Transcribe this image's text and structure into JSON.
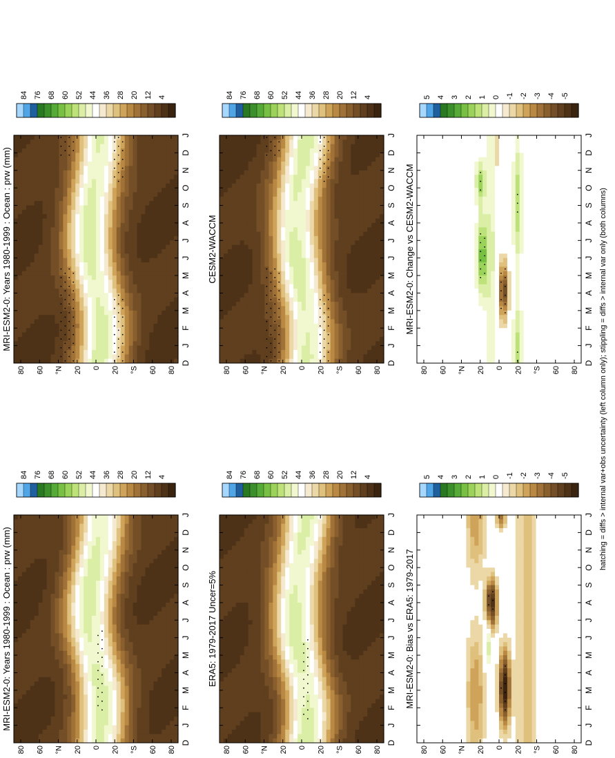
{
  "footnote": "hatching = diffs > internal var+obs uncertainty (left column only); stippling = diffs > internal var only (both columns)",
  "colors": {
    "precip_scale": [
      "#3a2410",
      "#4e3218",
      "#5f3f1e",
      "#734e26",
      "#8a5f2e",
      "#a07237",
      "#b98944",
      "#cfa45a",
      "#dfc07c",
      "#ecd8a6",
      "#f5ead0",
      "#ffffff",
      "#f1f8cf",
      "#dbeea6",
      "#bde27a",
      "#9bd35a",
      "#78c043",
      "#56aa37",
      "#3b902c",
      "#297822",
      "#1f5f9e",
      "#4fa5e6",
      "#a6d7ff"
    ]
  },
  "chart_data": [
    {
      "type": "heatmap",
      "id": "model_clim",
      "title": "MRI-ESM2-0: Years 1980-1999 : Ocean : prw (mm)",
      "x": [
        "D",
        "J",
        "F",
        "M",
        "A",
        "M",
        "J",
        "J",
        "A",
        "S",
        "O",
        "N",
        "D",
        "J"
      ],
      "y_ticks": [
        "80",
        "60",
        "40",
        "20",
        "0",
        "20",
        "40",
        "60",
        "80"
      ],
      "y_labels": [
        "80",
        "60",
        "°N",
        "20",
        "0",
        "20",
        "°S",
        "60",
        "80"
      ],
      "colorbar": [
        "84",
        "76",
        "68",
        "60",
        "52",
        "44",
        "36",
        "28",
        "20",
        "12",
        "4"
      ]
    },
    {
      "type": "heatmap",
      "id": "model_clim_2",
      "title": "MRI-ESM2-0: Years 1980-1999 : Ocean : prw (mm)",
      "x": [
        "D",
        "J",
        "F",
        "M",
        "A",
        "M",
        "J",
        "J",
        "A",
        "S",
        "O",
        "N",
        "D",
        "J"
      ],
      "y_labels": [
        "80",
        "60",
        "°N",
        "20",
        "0",
        "20",
        "°S",
        "60",
        "80"
      ],
      "colorbar": [
        "84",
        "76",
        "68",
        "60",
        "52",
        "44",
        "36",
        "28",
        "20",
        "12",
        "4"
      ]
    },
    {
      "type": "heatmap",
      "id": "obs_clim",
      "title": "ERA5: 1979-2017 Uncer=5%",
      "x": [
        "D",
        "J",
        "F",
        "M",
        "A",
        "M",
        "J",
        "J",
        "A",
        "S",
        "O",
        "N",
        "D",
        "J"
      ],
      "y_labels": [
        "80",
        "60",
        "°N",
        "20",
        "0",
        "20",
        "°S",
        "60",
        "80"
      ],
      "colorbar": [
        "84",
        "76",
        "68",
        "60",
        "52",
        "44",
        "36",
        "28",
        "20",
        "12",
        "4"
      ]
    },
    {
      "type": "heatmap",
      "id": "ref_model_clim",
      "title": "CESM2-WACCM",
      "x": [
        "D",
        "J",
        "F",
        "M",
        "A",
        "M",
        "J",
        "J",
        "A",
        "S",
        "O",
        "N",
        "D",
        "J"
      ],
      "y_labels": [
        "80",
        "60",
        "°N",
        "20",
        "0",
        "20",
        "°S",
        "60",
        "80"
      ],
      "colorbar": [
        "84",
        "76",
        "68",
        "60",
        "52",
        "44",
        "36",
        "28",
        "20",
        "12",
        "4"
      ]
    },
    {
      "type": "heatmap",
      "id": "bias",
      "title": "MRI-ESM2-0: Bias vs ERA5: 1979-2017",
      "x": [
        "D",
        "J",
        "F",
        "M",
        "A",
        "M",
        "J",
        "J",
        "A",
        "S",
        "O",
        "N",
        "D",
        "J"
      ],
      "y_labels": [
        "80",
        "60",
        "°N",
        "20",
        "0",
        "20",
        "°S",
        "60",
        "80"
      ],
      "colorbar": [
        "5",
        "4",
        "3",
        "2",
        "1",
        "0",
        "-1",
        "-2",
        "-3",
        "-4",
        "-5"
      ]
    },
    {
      "type": "heatmap",
      "id": "change",
      "title": "MRI-ESM2-0: Change vs CESM2-WACCM",
      "x": [
        "D",
        "J",
        "F",
        "M",
        "A",
        "M",
        "J",
        "J",
        "A",
        "S",
        "O",
        "N",
        "D",
        "J"
      ],
      "y_labels": [
        "80",
        "60",
        "°N",
        "20",
        "0",
        "20",
        "°S",
        "60",
        "80"
      ],
      "colorbar": [
        "5",
        "4",
        "3",
        "2",
        "1",
        "0",
        "-1",
        "-2",
        "-3",
        "-4",
        "-5"
      ]
    }
  ]
}
